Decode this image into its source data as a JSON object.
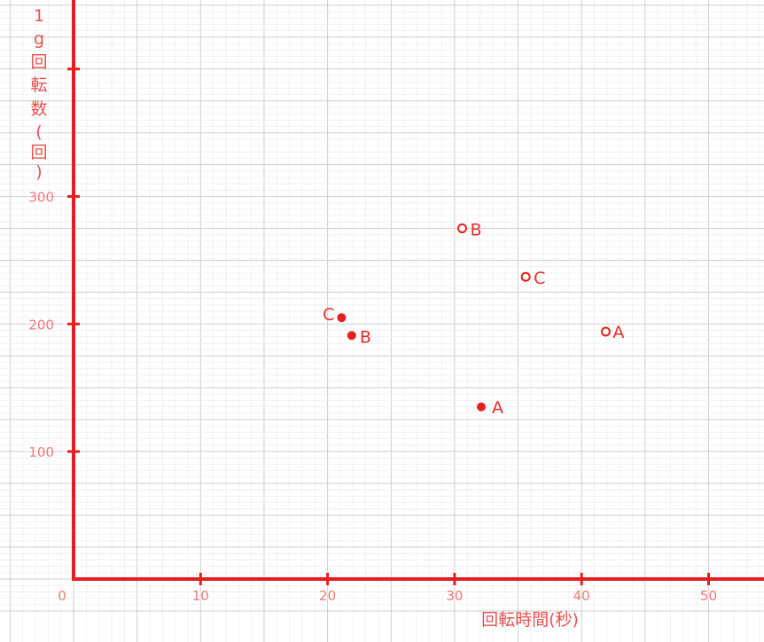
{
  "chart_data": {
    "type": "scatter",
    "title": "",
    "xlabel": "回転時間(秒)",
    "ylabel_chars": [
      "1",
      "g",
      "回",
      "転",
      "数",
      "(",
      "回",
      ")"
    ],
    "xlim": [
      0,
      55
    ],
    "ylim": [
      0,
      450
    ],
    "x_ticks": [
      0,
      10,
      20,
      30,
      40,
      50
    ],
    "y_ticks": [
      100,
      200,
      300
    ],
    "grid": true,
    "colors": {
      "axis": "#e81e1e",
      "grid": "#d9d9d9",
      "point": "#e81e1e"
    },
    "series": [
      {
        "marker": "filled",
        "points": [
          {
            "x": 32.1,
            "y": 135,
            "label": "A"
          },
          {
            "x": 21.9,
            "y": 191,
            "label": "B"
          },
          {
            "x": 21.1,
            "y": 205,
            "label": "C"
          }
        ]
      },
      {
        "marker": "open",
        "points": [
          {
            "x": 41.9,
            "y": 194,
            "label": "A"
          },
          {
            "x": 30.6,
            "y": 275,
            "label": "B"
          },
          {
            "x": 35.6,
            "y": 237,
            "label": "C"
          }
        ]
      }
    ]
  }
}
